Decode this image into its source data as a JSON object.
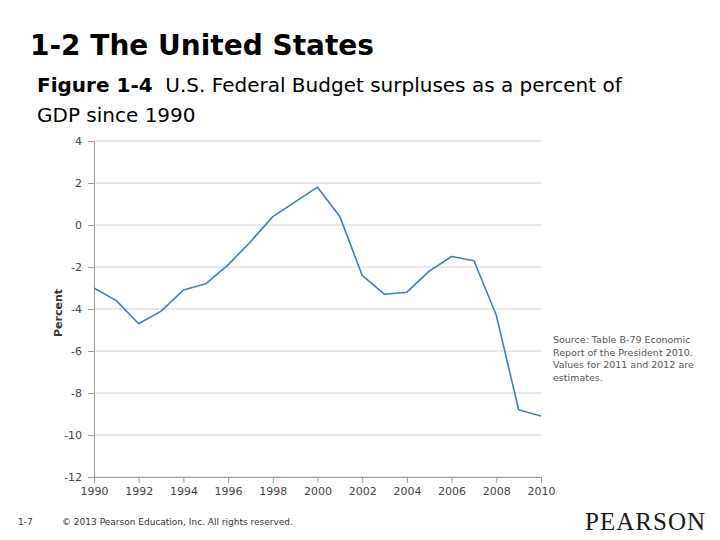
{
  "slide": {
    "header": "1-2 The United States",
    "figure_label": "Figure 1-4",
    "page": "1-7",
    "copyright": "© 2013 Pearson Education, Inc. All rights reserved.",
    "logo": "PEARSON"
  },
  "chart_data": {
    "type": "line",
    "title": "U.S. Federal Budget surpluses as a percent of GDP since 1990",
    "ylabel": "Percent",
    "note": [
      "Source: Table B-79 Economic",
      "Report of the President 2010.",
      "Values for 2011 and 2012 are",
      "estimates."
    ],
    "x": [
      1990,
      1991,
      1992,
      1993,
      1994,
      1995,
      1996,
      1997,
      1998,
      1999,
      2000,
      2001,
      2002,
      2003,
      2004,
      2005,
      2006,
      2007,
      2008,
      2009,
      2010
    ],
    "values": [
      -3.0,
      -3.6,
      -4.7,
      -4.1,
      -3.1,
      -2.8,
      -1.9,
      -0.8,
      0.4,
      1.1,
      1.8,
      0.4,
      -2.4,
      -3.3,
      -3.2,
      -2.2,
      -1.5,
      -1.7,
      -4.3,
      -8.8,
      -9.1
    ],
    "color": "#3d7fc0",
    "xlim": [
      1990,
      2010
    ],
    "xticks": [
      1990,
      1992,
      1994,
      1996,
      1998,
      2000,
      2002,
      2004,
      2006,
      2008,
      2010
    ],
    "ylim": [
      -12,
      4
    ],
    "yticks": [
      -12,
      -10,
      -8,
      -6,
      -4,
      -2,
      0,
      2,
      4
    ],
    "grid": true
  }
}
